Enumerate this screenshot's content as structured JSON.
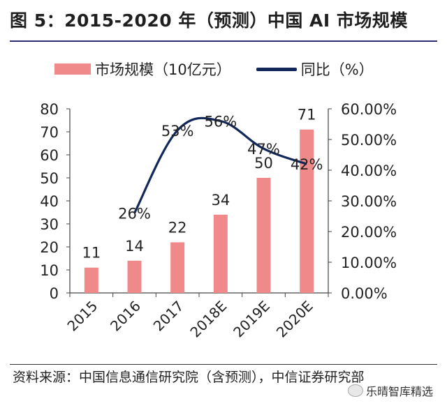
{
  "title": "图 5：2015-2020 年（预测）中国 AI 市场规模",
  "legend": {
    "bar_label": "市场规模（10亿元）",
    "line_label": "同比（%）"
  },
  "source": "资料来源：中国信息通信研究院（含预测），中信证券研究部",
  "watermark": "乐晴智库精选",
  "colors": {
    "bar": "#f08a8a",
    "line": "#13285a",
    "axis": "#444444"
  },
  "chart_data": {
    "type": "bar",
    "title": "2015-2020 年（预测）中国 AI 市场规模",
    "categories": [
      "2015",
      "2016",
      "2017",
      "2018E",
      "2019E",
      "2020E"
    ],
    "series": [
      {
        "name": "市场规模（10亿元）",
        "type": "bar",
        "axis": "left",
        "values": [
          11,
          14,
          22,
          34,
          50,
          71
        ],
        "labels": [
          "11",
          "14",
          "22",
          "34",
          "50",
          "71"
        ]
      },
      {
        "name": "同比（%）",
        "type": "line",
        "axis": "right",
        "values": [
          null,
          26,
          53,
          56,
          47,
          42
        ],
        "labels": [
          null,
          "26%",
          "53%",
          "56%",
          "47%",
          "42%"
        ]
      }
    ],
    "ylim_left": [
      0,
      80
    ],
    "yticks_left": [
      "0",
      "10",
      "20",
      "30",
      "40",
      "50",
      "60",
      "70",
      "80"
    ],
    "ylim_right": [
      0,
      60
    ],
    "yticks_right": [
      "0.00%",
      "10.00%",
      "20.00%",
      "30.00%",
      "40.00%",
      "50.00%",
      "60.00%"
    ],
    "legend_position": "top",
    "grid": false
  }
}
